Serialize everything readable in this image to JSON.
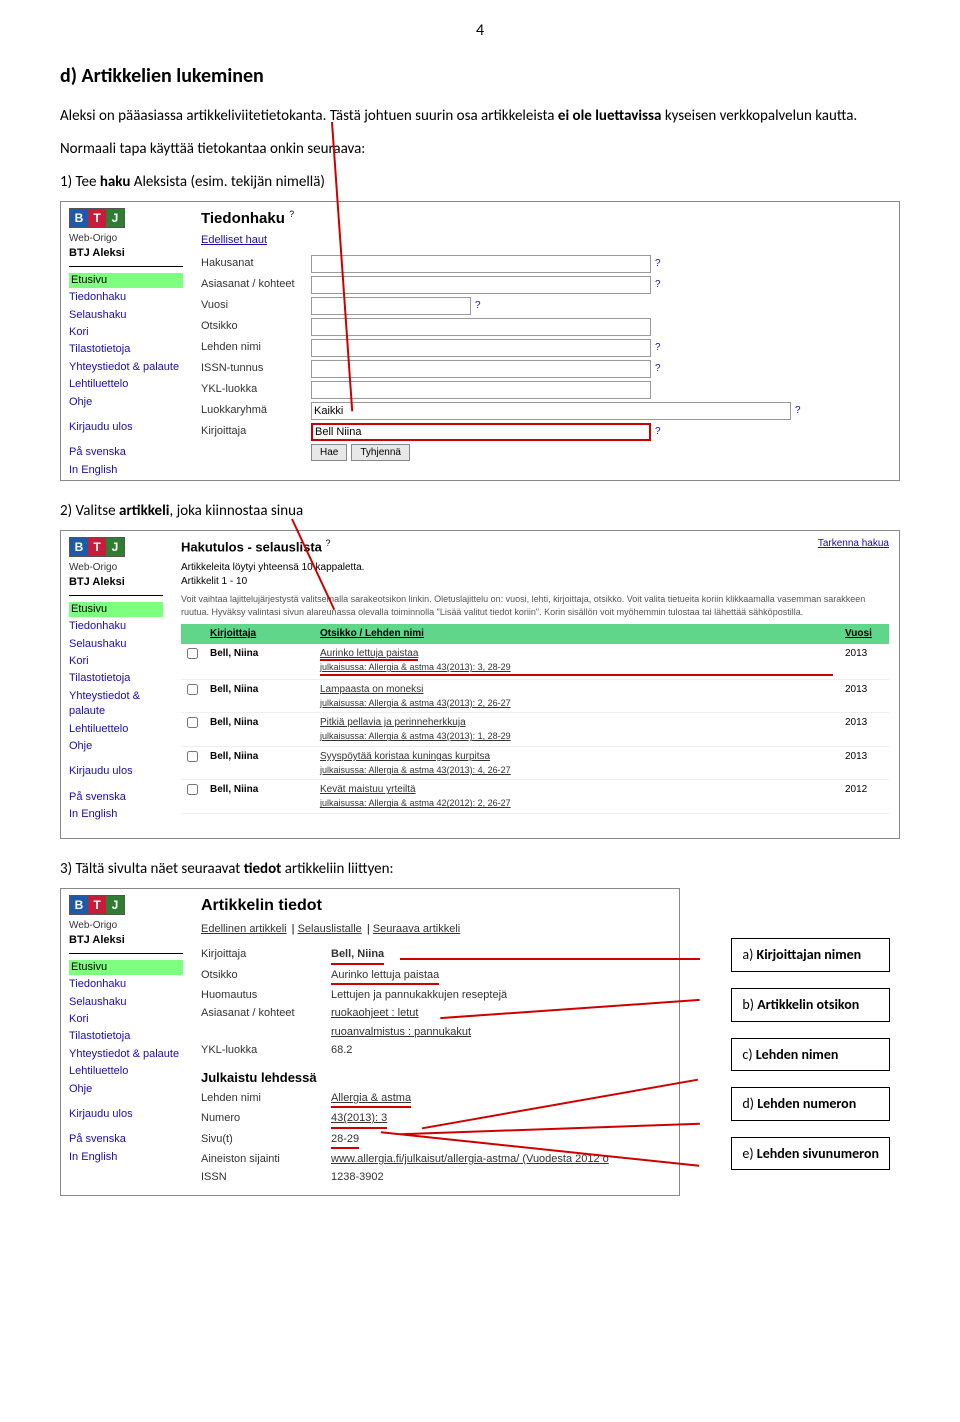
{
  "page_number": "4",
  "heading": "d) Artikkelien lukeminen",
  "intro_html_parts": {
    "p1a": "Aleksi on pääasiassa artikkeliviitetietokanta. Tästä johtuen suurin osa artikkeleista ",
    "p1b": "ei ole luettavissa",
    "p1c": " kyseisen verkkopalvelun kautta."
  },
  "normal_use": "Normaali tapa käyttää tietokantaa onkin seuraava:",
  "step1_prefix": "1)   Tee ",
  "step1_bold": "haku",
  "step1_suffix": " Aleksista (esim. tekijän nimellä)",
  "step2_prefix": "2)   Valitse ",
  "step2_bold": "artikkeli",
  "step2_suffix": ", joka kiinnostaa sinua",
  "step3_prefix": "3)   Tältä sivulta näet seuraavat ",
  "step3_bold": "tiedot",
  "step3_suffix": " artikkeliin liittyen:",
  "sidebar": {
    "weborigo": "Web-Origo",
    "btjaleksi": "BTJ Aleksi",
    "items": [
      "Etusivu",
      "Tiedonhaku",
      "Selaushaku",
      "Kori",
      "Tilastotietoja",
      "Yhteystiedot & palaute",
      "Lehtiluettelo",
      "Ohje"
    ],
    "logout": "Kirjaudu ulos",
    "langs": [
      "På svenska",
      "In English"
    ]
  },
  "shot1": {
    "title": "Tiedonhaku",
    "prev": "Edelliset haut",
    "fields": [
      "Hakusanat",
      "Asiasanat / kohteet",
      "Vuosi",
      "Otsikko",
      "Lehden nimi",
      "ISSN-tunnus",
      "YKL-luokka",
      "Luokkaryhmä",
      "Kirjoittaja"
    ],
    "luokkaryhma_value": "Kaikki",
    "kirjoittaja_value": "Bell Niina",
    "btn_hae": "Hae",
    "btn_tyhj": "Tyhjennä"
  },
  "shot2": {
    "title": "Hakutulos - selauslista",
    "count_line": "Artikkeleita löytyi yhteensä 10 kappaletta.",
    "range_line": "Artikkelit 1 - 10",
    "tarkenna": "Tarkenna hakua",
    "desc": "Voit vaihtaa lajittelujärjestystä valitsemalla sarakeotsikon linkin. Oletuslajittelu on: vuosi, lehti, kirjoittaja, otsikko. Voit valita tietueita koriin klikkaamalla vasemman sarakkeen ruutua. Hyväksy valintasi sivun alareunassa olevalla toiminnolla \"Lisää valitut tiedot koriin\". Korin sisällön voit myöhemmin tulostaa tai lähettää sähköpostilla.",
    "cols": [
      "Kirjoittaja",
      "Otsikko / Lehden nimi",
      "Vuosi"
    ],
    "rows": [
      {
        "author": "Bell, Niina",
        "title": "Aurinko lettuja paistaa",
        "pub": "julkaisussa: Allergia & astma 43(2013): 3, 28-29",
        "year": "2013",
        "highlight": true
      },
      {
        "author": "Bell, Niina",
        "title": "Lampaasta on moneksi",
        "pub": "julkaisussa: Allergia & astma 43(2013): 2, 26-27",
        "year": "2013"
      },
      {
        "author": "Bell, Niina",
        "title": "Pitkiä pellavia ja perinneherkkuja",
        "pub": "julkaisussa: Allergia & astma 43(2013): 1, 28-29",
        "year": "2013"
      },
      {
        "author": "Bell, Niina",
        "title": "Syyspöytää koristaa kuningas kurpitsa",
        "pub": "julkaisussa: Allergia & astma 43(2013): 4, 26-27",
        "year": "2013"
      },
      {
        "author": "Bell, Niina",
        "title": "Kevät maistuu yrteiltä",
        "pub": "julkaisussa: Allergia & astma 42(2012): 2, 26-27",
        "year": "2012"
      }
    ]
  },
  "shot3": {
    "title": "Artikkelin tiedot",
    "nav": [
      "Edellinen artikkeli",
      "Selauslistalle",
      "Seuraava artikkeli"
    ],
    "rows": [
      {
        "label": "Kirjoittaja",
        "value": "Bell, Niina",
        "bold": true,
        "red": true
      },
      {
        "label": "Otsikko",
        "value": "Aurinko lettuja paistaa",
        "red": true
      },
      {
        "label": "Huomautus",
        "value": "Lettujen ja pannukakkujen reseptejä"
      },
      {
        "label": "Asiasanat / kohteet",
        "value": "ruokaohjeet : letut",
        "u": true
      },
      {
        "label": "",
        "value": "ruoanvalmistus : pannukakut",
        "u": true
      },
      {
        "label": "YKL-luokka",
        "value": "68.2"
      }
    ],
    "subhead": "Julkaistu lehdessä",
    "pubrows": [
      {
        "label": "Lehden nimi",
        "value": "Allergia & astma",
        "red": true,
        "u": true
      },
      {
        "label": "Numero",
        "value": "43(2013): 3",
        "red": true,
        "u": true
      },
      {
        "label": "Sivu(t)",
        "value": "28-29",
        "red": true
      },
      {
        "label": "Aineiston sijainti",
        "value": "www.allergia.fi/julkaisut/allergia-astma/ (Vuodesta 2012 o",
        "u": true
      },
      {
        "label": "ISSN",
        "value": "1238-3902"
      }
    ]
  },
  "callouts": [
    {
      "tag": "a)",
      "text": " Kirjoittajan nimen"
    },
    {
      "tag": "b)",
      "text": " Artikkelin otsikon"
    },
    {
      "tag": "c)",
      "text": " Lehden nimen"
    },
    {
      "tag": "d)",
      "text": " Lehden numeron"
    },
    {
      "tag": "e)",
      "text": " Lehden sivunumeron"
    }
  ]
}
